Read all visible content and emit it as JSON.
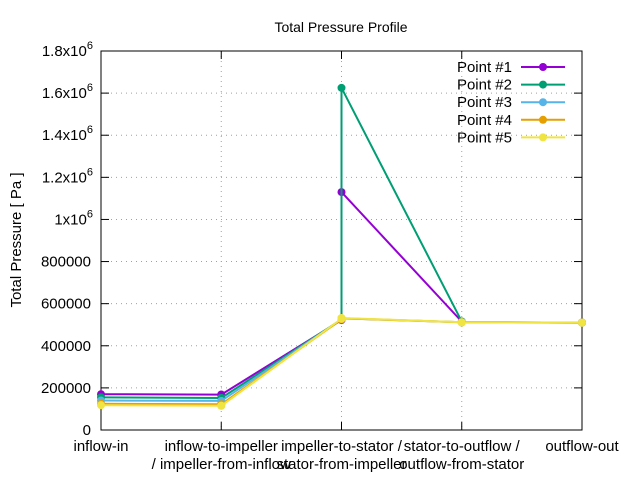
{
  "chart_data": {
    "type": "line",
    "title": "Total Pressure Profile",
    "xlabel": "",
    "ylabel": "Total Pressure [ Pa ]",
    "ylim": [
      0,
      1800000
    ],
    "grid": true,
    "legend_position": "top-right",
    "categories": [
      [
        "inflow-in",
        ""
      ],
      [
        "inflow-to-impeller",
        "/ impeller-from-inflow"
      ],
      [
        "impeller-to-stator /",
        "stator-from-impeller"
      ],
      [
        "stator-to-outflow /",
        "outflow-from-stator"
      ],
      [
        "outflow-out",
        ""
      ]
    ],
    "y_ticks": [
      {
        "value": 0,
        "label": "0",
        "exp": ""
      },
      {
        "value": 200000,
        "label": "200000",
        "exp": ""
      },
      {
        "value": 400000,
        "label": "400000",
        "exp": ""
      },
      {
        "value": 600000,
        "label": "600000",
        "exp": ""
      },
      {
        "value": 800000,
        "label": "800000",
        "exp": ""
      },
      {
        "value": 1000000,
        "label": "1x10",
        "exp": "6"
      },
      {
        "value": 1200000,
        "label": "1.2x10",
        "exp": "6"
      },
      {
        "value": 1400000,
        "label": "1.4x10",
        "exp": "6"
      },
      {
        "value": 1600000,
        "label": "1.6x10",
        "exp": "6"
      },
      {
        "value": 1800000,
        "label": "1.8x10",
        "exp": "6"
      }
    ],
    "x": [
      0,
      1,
      1,
      2,
      2,
      3,
      3,
      4
    ],
    "series": [
      {
        "name": "Point #1",
        "color": "#9400d3",
        "values": [
          170000,
          168000,
          168000,
          522000,
          1130000,
          515000,
          512000,
          510000
        ]
      },
      {
        "name": "Point #2",
        "color": "#009e73",
        "values": [
          155000,
          152000,
          152000,
          525000,
          1625000,
          515000,
          512000,
          510000
        ]
      },
      {
        "name": "Point #3",
        "color": "#56b4e9",
        "values": [
          140000,
          138000,
          138000,
          525000,
          530000,
          512000,
          511000,
          510000
        ]
      },
      {
        "name": "Point #4",
        "color": "#e69f00",
        "values": [
          125000,
          122000,
          122000,
          525000,
          530000,
          512000,
          511000,
          510000
        ]
      },
      {
        "name": "Point #5",
        "color": "#f0e442",
        "values": [
          118000,
          115000,
          115000,
          528000,
          532000,
          512000,
          511000,
          510000
        ]
      }
    ]
  }
}
